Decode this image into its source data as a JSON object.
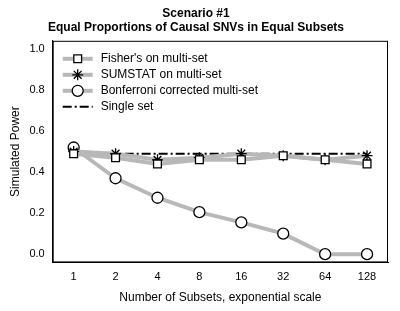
{
  "chart_data": {
    "type": "line",
    "title": "Scenario #1\nEqual Proportions of Causal SNVs in Equal Subsets",
    "x_label": "Number of Subsets, exponential scale",
    "y_label": "Simulated Power",
    "categories": [
      1,
      2,
      4,
      8,
      16,
      32,
      64,
      128
    ],
    "series": [
      {
        "name": "Fisher's on multi-set",
        "color": "#b8b8b8",
        "marker": "square",
        "line_style": "solid",
        "values": [
          0.49,
          0.47,
          0.44,
          0.46,
          0.46,
          0.48,
          0.46,
          0.44
        ]
      },
      {
        "name": "SUMSTAT on multi-set",
        "color": "#b8b8b8",
        "marker": "asterisk",
        "line_style": "solid",
        "values": [
          0.5,
          0.49,
          0.46,
          0.47,
          0.49,
          0.48,
          0.46,
          0.48
        ]
      },
      {
        "name": "Bonferroni corrected multi-set",
        "color": "#b8b8b8",
        "marker": "circle",
        "line_style": "solid",
        "values": [
          0.52,
          0.37,
          0.275,
          0.205,
          0.155,
          0.1,
          0.0,
          0.0
        ]
      },
      {
        "name": "Single set",
        "color": "#000000",
        "marker": "none",
        "line_style": "dashdot",
        "values": [
          0.49,
          0.49,
          0.49,
          0.49,
          0.49,
          0.49,
          0.49,
          0.49
        ]
      }
    ],
    "ylim": [
      -0.04,
      1.04
    ],
    "yticks": [
      {
        "value": 0,
        "label": "0.0"
      },
      0.2,
      0.4,
      0.6,
      0.8,
      {
        "value": 1,
        "label": "1.0"
      }
    ],
    "grid": false,
    "legend": "upper left"
  }
}
